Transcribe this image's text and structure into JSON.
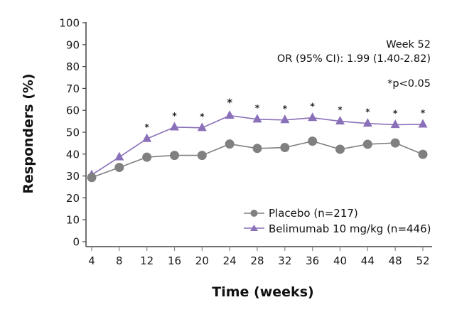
{
  "chart_data": {
    "type": "line",
    "title": "",
    "xlabel": "Time (weeks)",
    "ylabel": "Responders (%)",
    "x": [
      4,
      8,
      12,
      16,
      20,
      24,
      28,
      32,
      36,
      40,
      44,
      48,
      52
    ],
    "xticks": [
      "4",
      "8",
      "12",
      "16",
      "20",
      "24",
      "28",
      "32",
      "36",
      "40",
      "44",
      "48",
      "52"
    ],
    "yticks": [
      "0",
      "10",
      "20",
      "30",
      "40",
      "50",
      "60",
      "70",
      "80",
      "90",
      "100"
    ],
    "xlim": [
      4,
      52
    ],
    "ylim": [
      0,
      100
    ],
    "grid": false,
    "legend_position": "bottom-right",
    "series": [
      {
        "name": "Placebo (n=217)",
        "marker": "circle",
        "color": "#808080",
        "values": [
          29.3,
          33.9,
          38.6,
          39.4,
          39.4,
          44.6,
          42.6,
          43.0,
          45.9,
          42.2,
          44.5,
          45.1,
          39.9
        ]
      },
      {
        "name": "Belimumab 10 mg/kg (n=446)",
        "marker": "triangle",
        "color": "#8a70b8",
        "values": [
          30.5,
          38.6,
          47.0,
          52.3,
          52.0,
          57.6,
          55.9,
          55.6,
          56.6,
          55.0,
          54.0,
          53.4,
          53.6
        ],
        "significant": [
          false,
          false,
          true,
          true,
          true,
          true,
          true,
          true,
          true,
          true,
          true,
          true,
          true
        ]
      }
    ],
    "annotations": {
      "week_label": "Week 52",
      "odds_ratio": "OR (95% CI): 1.99 (1.40-2.82)",
      "significance_note": "*p<0.05",
      "significance_marker": "*"
    }
  }
}
